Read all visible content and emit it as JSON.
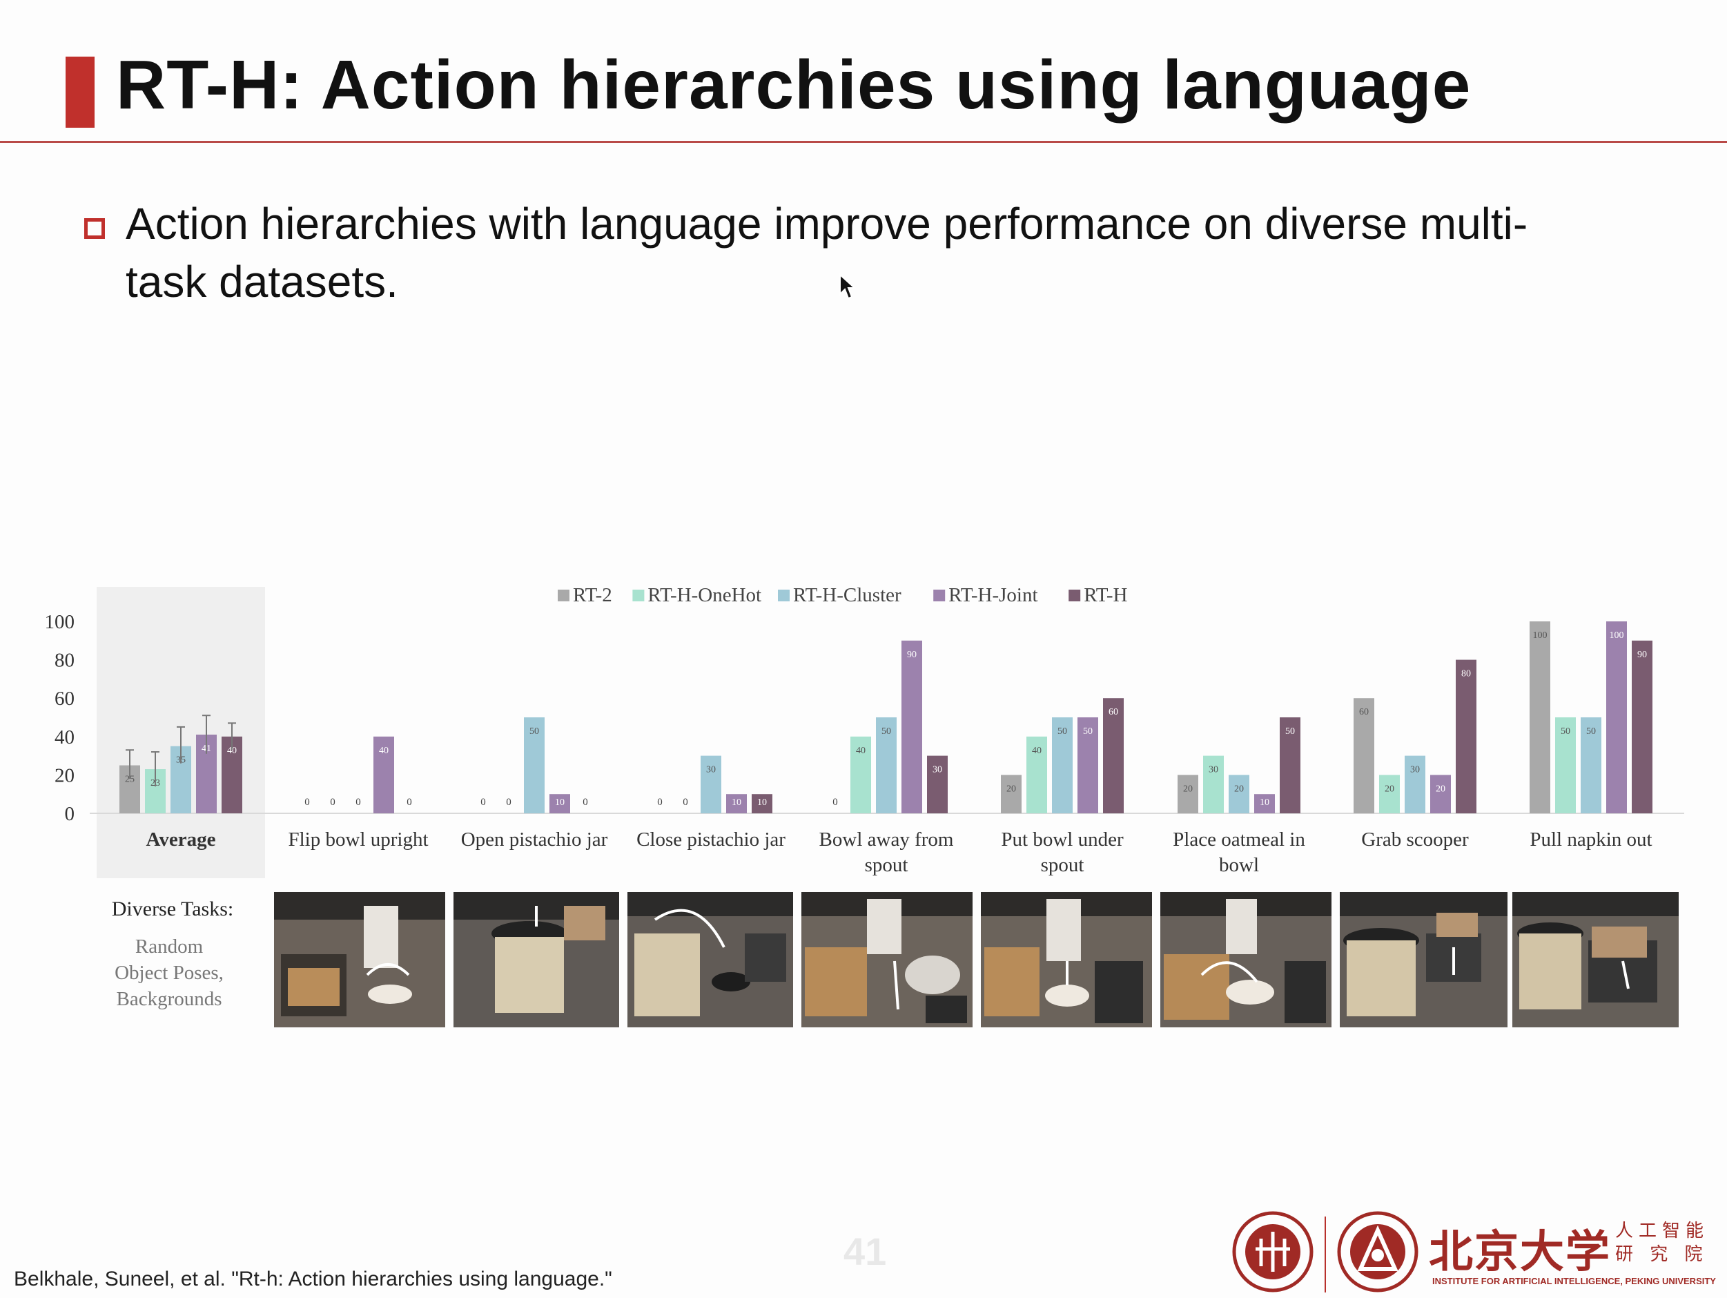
{
  "slide": {
    "title": "RT-H: Action hierarchies using language",
    "bullet": "Action hierarchies with language improve performance on diverse multi-task datasets.",
    "page_number": "41",
    "citation": "Belkhale, Suneel, et al. \"Rt-h: Action hierarchies using language.\"",
    "accent_color": "#c0302c"
  },
  "tasks_panel": {
    "title": "Diverse Tasks:",
    "subtitle_lines": [
      "Random",
      "Object Poses,",
      "Backgrounds"
    ]
  },
  "logos": {
    "name_cn": "北京大学",
    "institute_cn_lines": [
      "人工智能",
      "研 究 院"
    ],
    "institute_en": "INSTITUTE FOR ARTIFICIAL INTELLIGENCE, PEKING UNIVERSITY"
  },
  "chart_data": {
    "type": "bar",
    "title": "",
    "xlabel": "",
    "ylabel": "",
    "ylim": [
      0,
      100
    ],
    "yticks": [
      0,
      20,
      40,
      60,
      80,
      100
    ],
    "legend_position": "top-center",
    "categories": [
      "Average",
      "Flip bowl upright",
      "Open pistachio jar",
      "Close pistachio jar",
      "Bowl away from spout",
      "Put bowl under spout",
      "Place oatmeal in bowl",
      "Grab scooper",
      "Pull napkin out"
    ],
    "series": [
      {
        "name": "RT-2",
        "color": "#a9a9a9",
        "values": [
          25,
          0,
          0,
          0,
          0,
          20,
          20,
          60,
          100
        ]
      },
      {
        "name": "RT-H-OneHot",
        "color": "#a8e2cf",
        "values": [
          23,
          0,
          0,
          0,
          40,
          40,
          30,
          20,
          50
        ]
      },
      {
        "name": "RT-H-Cluster",
        "color": "#9fc9d7",
        "values": [
          35,
          0,
          50,
          30,
          50,
          50,
          20,
          30,
          50
        ]
      },
      {
        "name": "RT-H-Joint",
        "color": "#9c82ad",
        "values": [
          41,
          40,
          10,
          10,
          90,
          50,
          10,
          20,
          100
        ]
      },
      {
        "name": "RT-H",
        "color": "#7a5c70",
        "values": [
          40,
          0,
          0,
          10,
          30,
          60,
          50,
          80,
          90
        ]
      }
    ],
    "error_bars": {
      "category": "Average",
      "upper": [
        33,
        32,
        45,
        51,
        47
      ],
      "lower": [
        18,
        14,
        26,
        31,
        33
      ]
    },
    "highlighted_category": "Average"
  }
}
